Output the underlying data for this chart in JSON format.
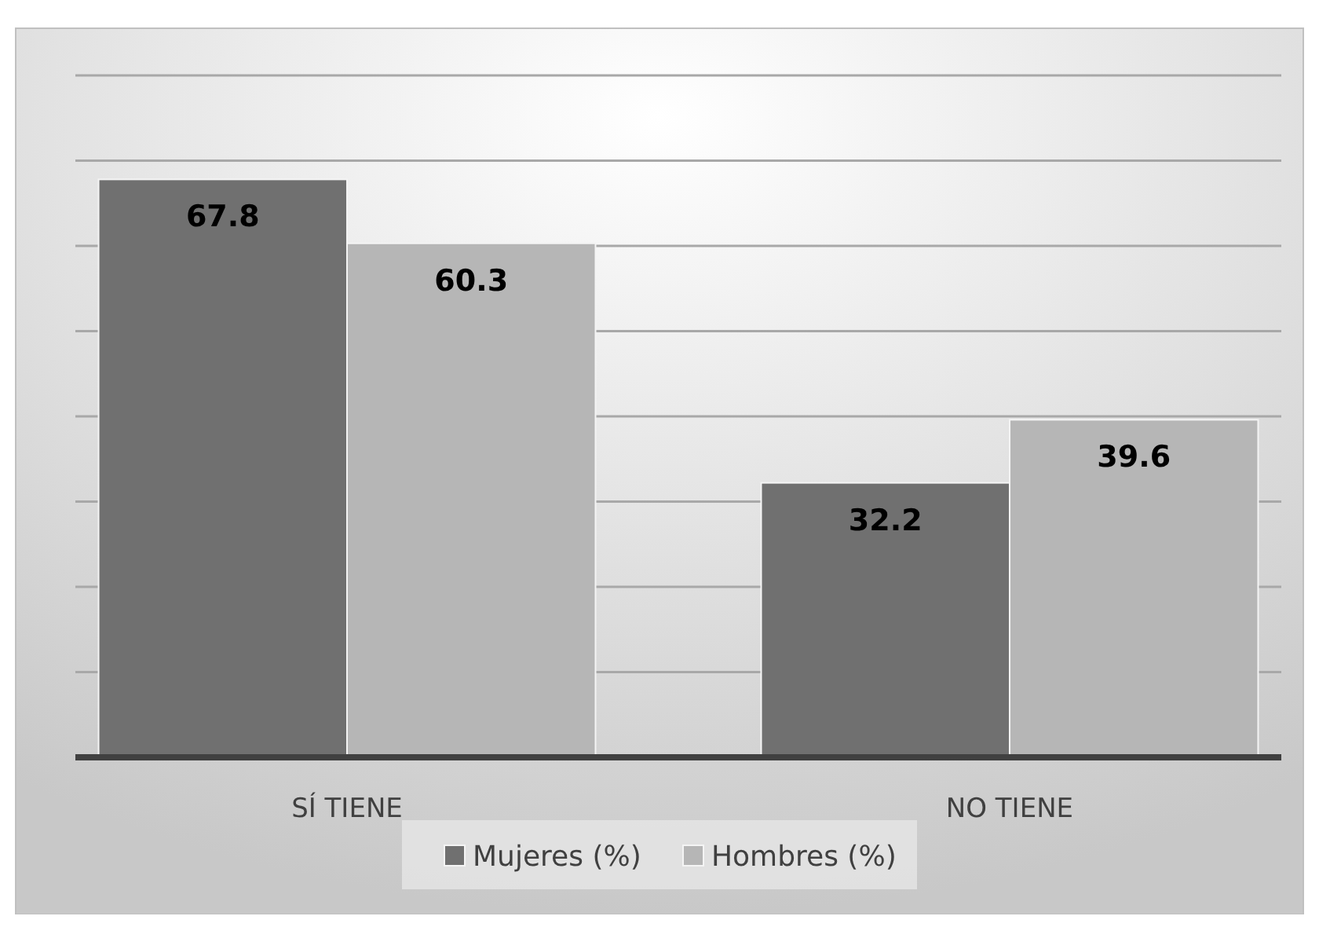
{
  "chart_data": {
    "type": "bar",
    "categories": [
      "SÍ TIENE",
      "NO TIENE"
    ],
    "series": [
      {
        "name": "Mujeres (%)",
        "color": "#707070",
        "values": [
          67.8,
          32.2
        ]
      },
      {
        "name": "Hombres (%)",
        "color": "#b6b6b6",
        "values": [
          60.3,
          39.6
        ]
      }
    ],
    "ylim": [
      0,
      80
    ],
    "yticks": [
      {
        "value": 0,
        "label": null
      },
      {
        "value": 10,
        "label": null
      },
      {
        "value": 20,
        "label": null
      },
      {
        "value": 30,
        "label": null
      },
      {
        "value": 40,
        "label": null
      },
      {
        "value": 50,
        "label": null
      },
      {
        "value": 60,
        "label": null
      },
      {
        "value": 70,
        "label": null
      },
      {
        "value": 80,
        "label": null
      }
    ],
    "tick_labels": "x",
    "grid": "y",
    "data_labels": true,
    "legend": "bottom"
  }
}
